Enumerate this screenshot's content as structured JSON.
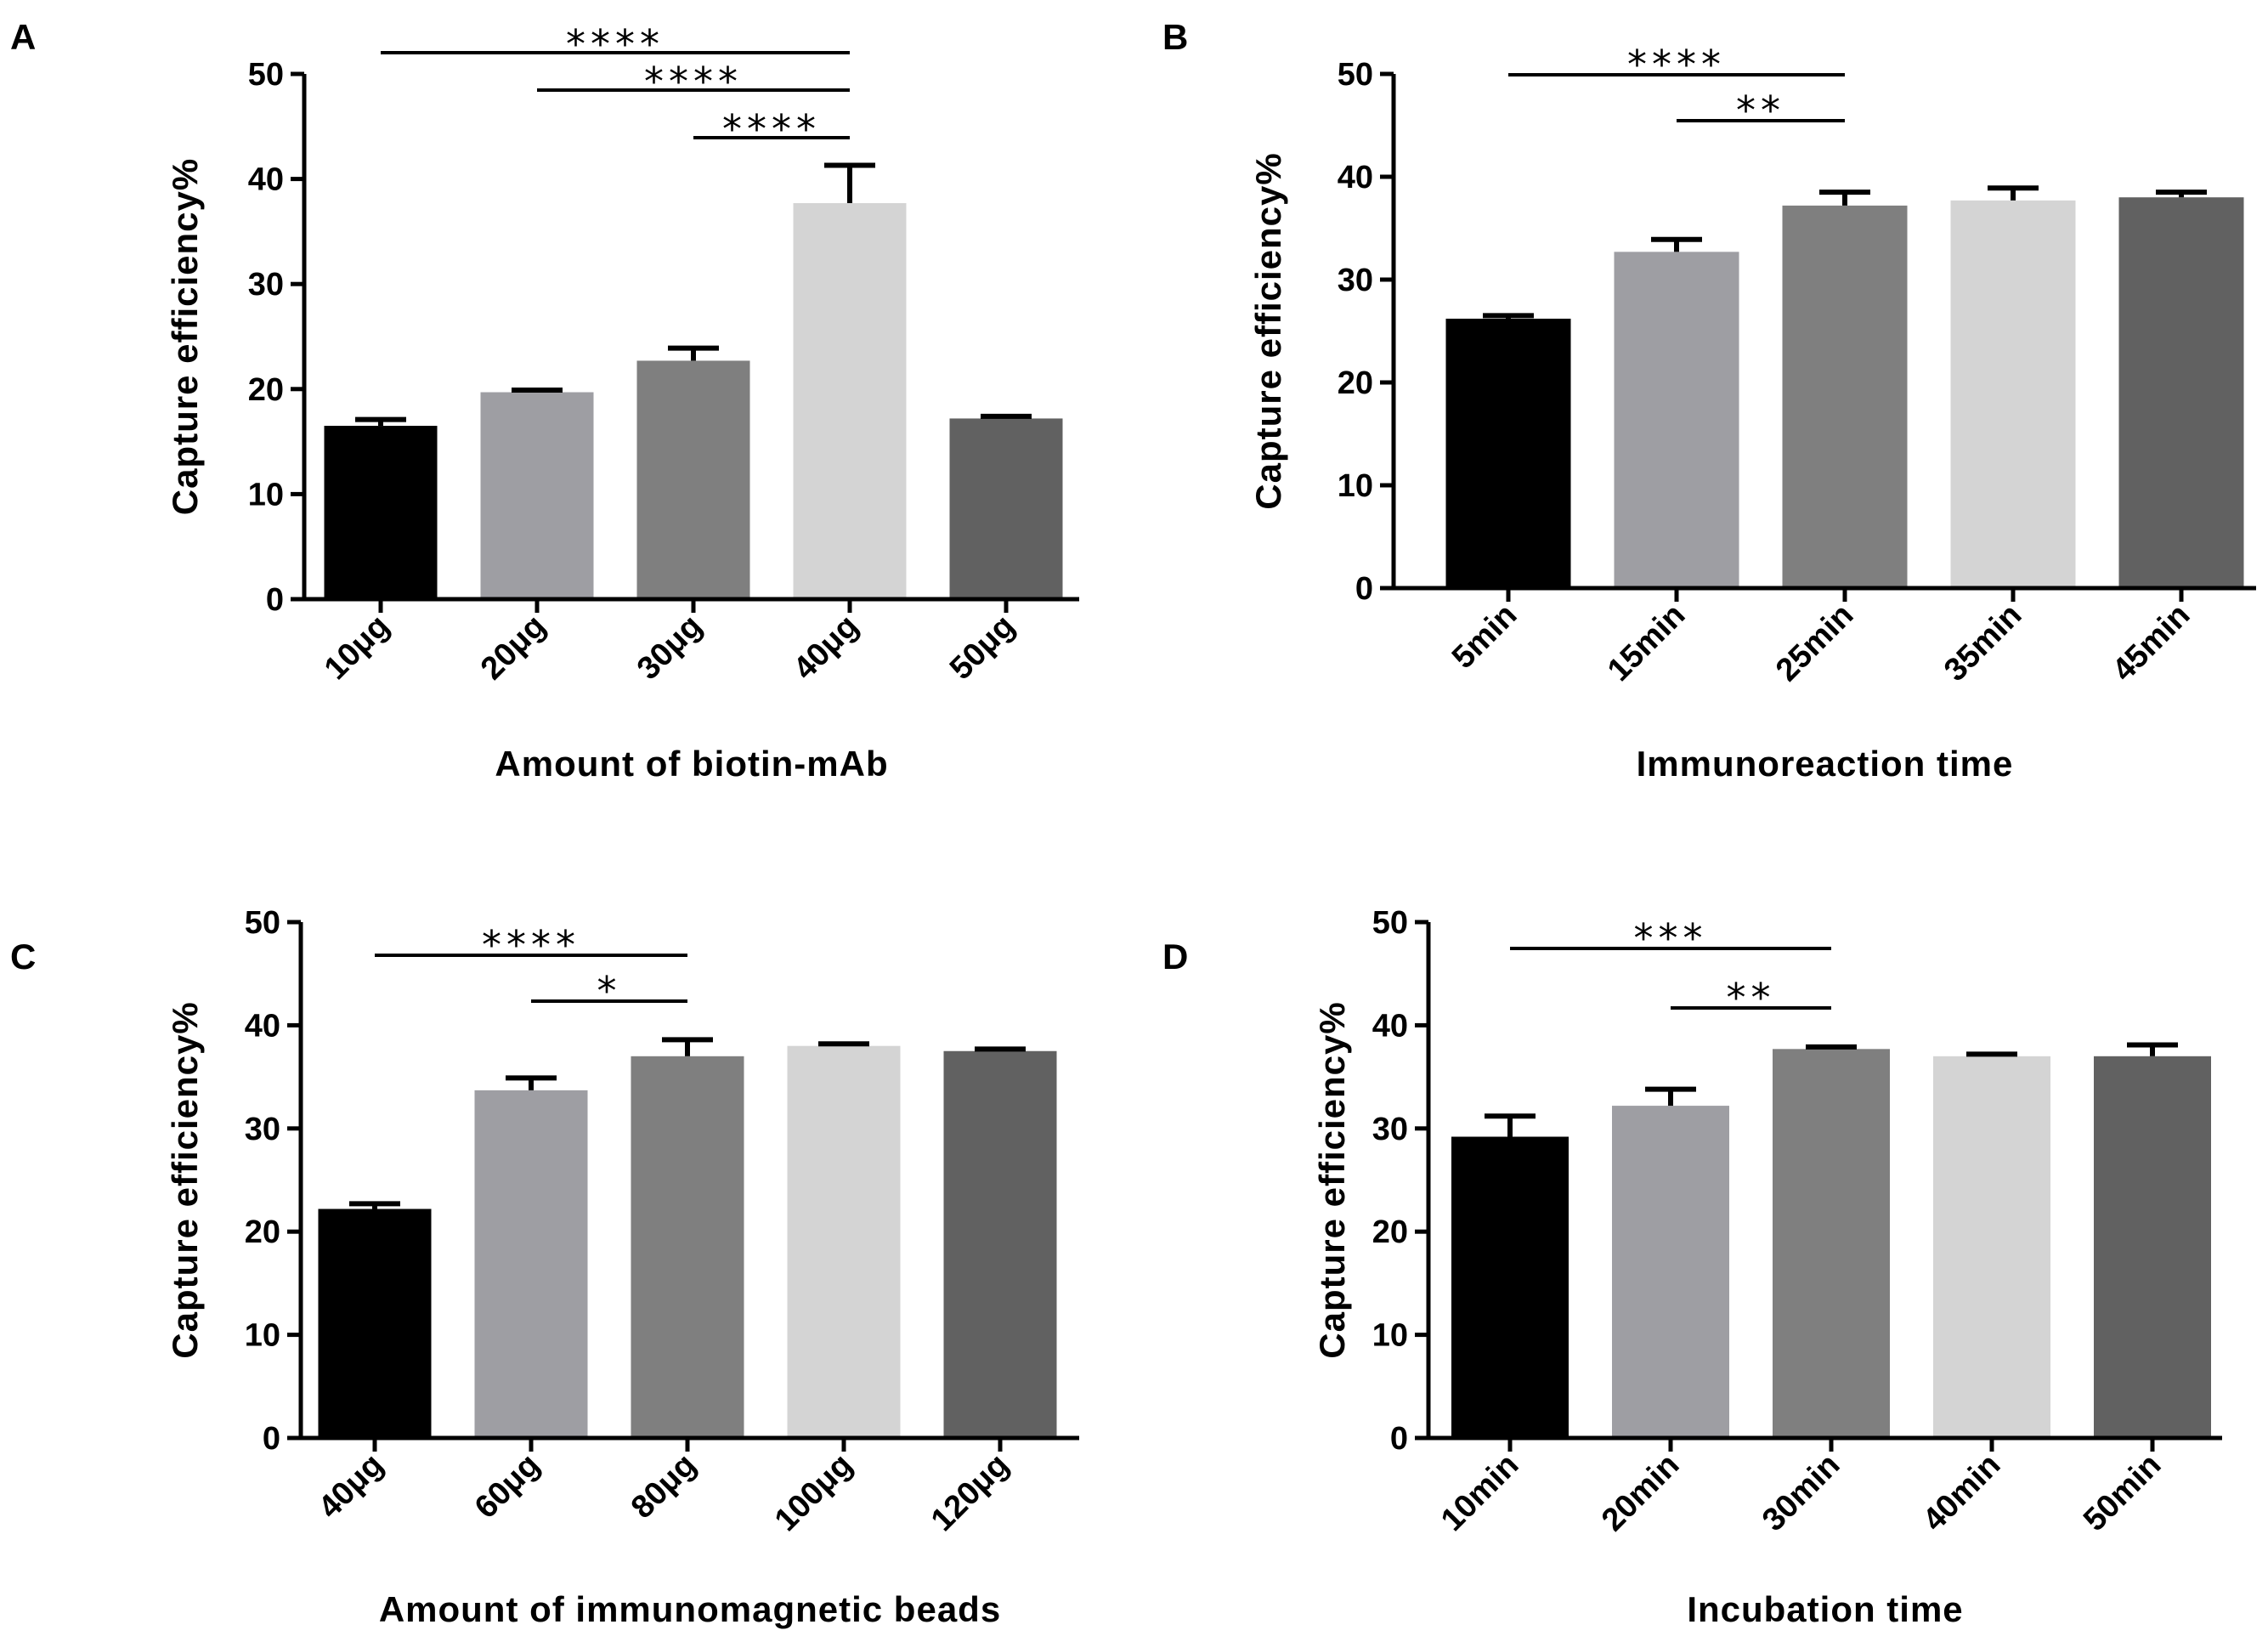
{
  "chart_data": [
    {
      "panel": "A",
      "type": "bar",
      "categories": [
        "10μg",
        "20μg",
        "30μg",
        "40μg",
        "50μg"
      ],
      "values": [
        16.5,
        19.7,
        22.7,
        37.7,
        17.2
      ],
      "errors": [
        0.6,
        0.2,
        1.2,
        3.6,
        0.2
      ],
      "colors": [
        "#000000",
        "#9e9ea3",
        "#7f7f7f",
        "#d4d4d4",
        "#616161"
      ],
      "ylabel": "Capture efficiency%",
      "xlabel": "Amount of biotin-mAb",
      "ylim": [
        0,
        50
      ],
      "yticks": [
        0,
        10,
        20,
        30,
        40,
        50
      ],
      "significance": [
        {
          "from": 0,
          "to": 3,
          "label": "****"
        },
        {
          "from": 1,
          "to": 3,
          "label": "****"
        },
        {
          "from": 2,
          "to": 3,
          "label": "****"
        }
      ]
    },
    {
      "panel": "B",
      "type": "bar",
      "categories": [
        "5min",
        "15min",
        "25min",
        "35min",
        "45min"
      ],
      "values": [
        26.2,
        32.7,
        37.2,
        37.7,
        38.0
      ],
      "errors": [
        0.3,
        1.2,
        1.3,
        1.2,
        0.5
      ],
      "colors": [
        "#000000",
        "#9e9ea3",
        "#7f7f7f",
        "#d4d4d4",
        "#616161"
      ],
      "ylabel": "Capture efficiency%",
      "xlabel": "Immunoreaction time",
      "ylim": [
        0,
        50
      ],
      "yticks": [
        0,
        10,
        20,
        30,
        40,
        50
      ],
      "significance": [
        {
          "from": 0,
          "to": 2,
          "label": "****"
        },
        {
          "from": 1,
          "to": 2,
          "label": "**"
        }
      ]
    },
    {
      "panel": "C",
      "type": "bar",
      "categories": [
        "40μg",
        "60μg",
        "80μg",
        "100μg",
        "120μg"
      ],
      "values": [
        22.2,
        33.7,
        37.0,
        38.0,
        37.5
      ],
      "errors": [
        0.5,
        1.2,
        1.6,
        0.2,
        0.2
      ],
      "colors": [
        "#000000",
        "#9e9ea3",
        "#7f7f7f",
        "#d4d4d4",
        "#616161"
      ],
      "ylabel": "Capture efficiency%",
      "xlabel": "Amount of immunomagnetic beads",
      "ylim": [
        0,
        50
      ],
      "yticks": [
        0,
        10,
        20,
        30,
        40,
        50
      ],
      "significance": [
        {
          "from": 0,
          "to": 2,
          "label": "****"
        },
        {
          "from": 1,
          "to": 2,
          "label": "*"
        }
      ]
    },
    {
      "panel": "D",
      "type": "bar",
      "categories": [
        "10min",
        "20min",
        "30min",
        "40min",
        "50min"
      ],
      "values": [
        29.2,
        32.2,
        37.7,
        37.0,
        37.0
      ],
      "errors": [
        2.0,
        1.6,
        0.2,
        0.2,
        1.1
      ],
      "colors": [
        "#000000",
        "#9e9ea3",
        "#7f7f7f",
        "#d4d4d4",
        "#616161"
      ],
      "ylabel": "Capture efficiency%",
      "xlabel": "Incubation time",
      "ylim": [
        0,
        50
      ],
      "yticks": [
        0,
        10,
        20,
        30,
        40,
        50
      ],
      "significance": [
        {
          "from": 0,
          "to": 2,
          "label": "***"
        },
        {
          "from": 1,
          "to": 2,
          "label": "**"
        }
      ]
    }
  ]
}
